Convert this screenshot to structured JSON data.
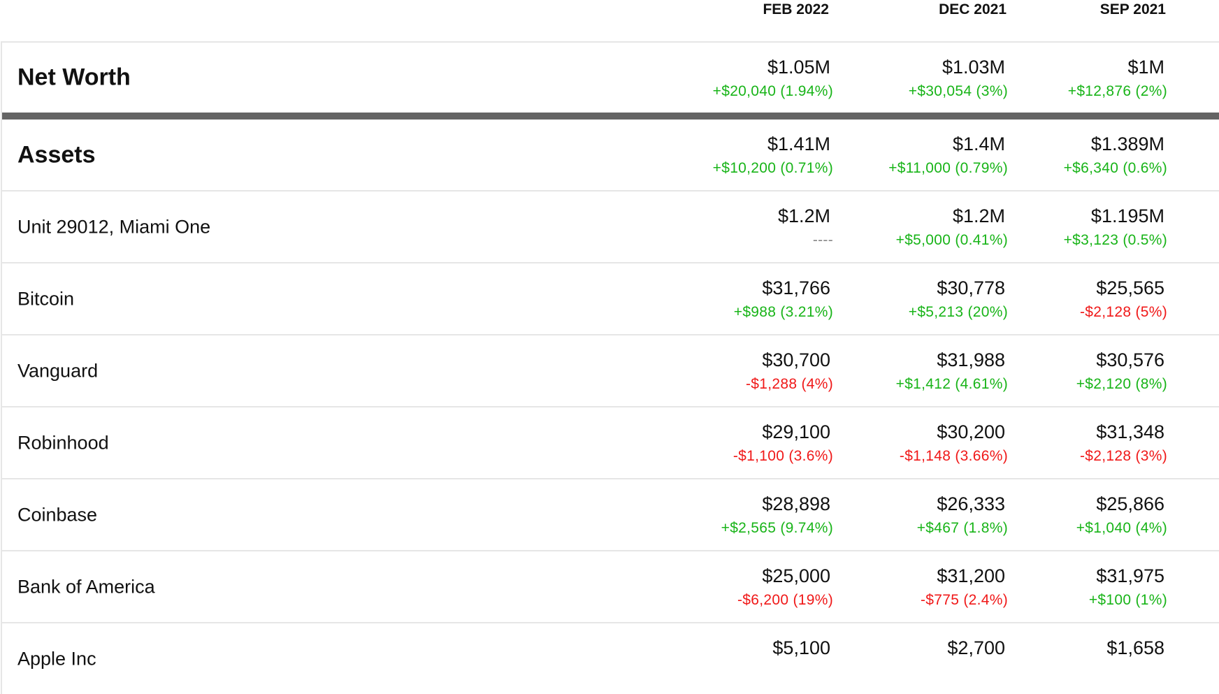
{
  "columns": [
    "FEB 2022",
    "DEC 2021",
    "SEP 2021"
  ],
  "colors": {
    "positive": "#18b418",
    "negative": "#f01818",
    "neutral": "#888888",
    "divider": "#646464"
  },
  "net_worth": {
    "label": "Net Worth",
    "cells": [
      {
        "value": "$1.05M",
        "change": "+$20,040 (1.94%)",
        "trend": "pos"
      },
      {
        "value": "$1.03M",
        "change": "+$30,054 (3%)",
        "trend": "pos"
      },
      {
        "value": "$1M",
        "change": "+$12,876 (2%)",
        "trend": "pos"
      }
    ]
  },
  "rows": [
    {
      "label": "Assets",
      "bold": true,
      "cells": [
        {
          "value": "$1.41M",
          "change": "+$10,200 (0.71%)",
          "trend": "pos"
        },
        {
          "value": "$1.4M",
          "change": "+$11,000 (0.79%)",
          "trend": "pos"
        },
        {
          "value": "$1.389M",
          "change": "+$6,340 (0.6%)",
          "trend": "pos"
        }
      ]
    },
    {
      "label": "Unit 29012, Miami One",
      "cells": [
        {
          "value": "$1.2M",
          "change": "----",
          "trend": "none"
        },
        {
          "value": "$1.2M",
          "change": "+$5,000 (0.41%)",
          "trend": "pos"
        },
        {
          "value": "$1.195M",
          "change": "+$3,123 (0.5%)",
          "trend": "pos"
        }
      ]
    },
    {
      "label": "Bitcoin",
      "cells": [
        {
          "value": "$31,766",
          "change": "+$988 (3.21%)",
          "trend": "pos"
        },
        {
          "value": "$30,778",
          "change": "+$5,213 (20%)",
          "trend": "pos"
        },
        {
          "value": "$25,565",
          "change": "-$2,128 (5%)",
          "trend": "neg"
        }
      ]
    },
    {
      "label": "Vanguard",
      "cells": [
        {
          "value": "$30,700",
          "change": "-$1,288 (4%)",
          "trend": "neg"
        },
        {
          "value": "$31,988",
          "change": "+$1,412 (4.61%)",
          "trend": "pos"
        },
        {
          "value": "$30,576",
          "change": "+$2,120 (8%)",
          "trend": "pos"
        }
      ]
    },
    {
      "label": "Robinhood",
      "cells": [
        {
          "value": "$29,100",
          "change": "-$1,100 (3.6%)",
          "trend": "neg"
        },
        {
          "value": "$30,200",
          "change": "-$1,148 (3.66%)",
          "trend": "neg"
        },
        {
          "value": "$31,348",
          "change": "-$2,128 (3%)",
          "trend": "neg"
        }
      ]
    },
    {
      "label": "Coinbase",
      "cells": [
        {
          "value": "$28,898",
          "change": "+$2,565 (9.74%)",
          "trend": "pos"
        },
        {
          "value": "$26,333",
          "change": "+$467 (1.8%)",
          "trend": "pos"
        },
        {
          "value": "$25,866",
          "change": "+$1,040 (4%)",
          "trend": "pos"
        }
      ]
    },
    {
      "label": "Bank of America",
      "cells": [
        {
          "value": "$25,000",
          "change": "-$6,200 (19%)",
          "trend": "neg"
        },
        {
          "value": "$31,200",
          "change": "-$775 (2.4%)",
          "trend": "neg"
        },
        {
          "value": "$31,975",
          "change": "+$100 (1%)",
          "trend": "pos"
        }
      ]
    },
    {
      "label": "Apple Inc",
      "cells": [
        {
          "value": "$5,100",
          "change": "",
          "trend": "none"
        },
        {
          "value": "$2,700",
          "change": "",
          "trend": "none"
        },
        {
          "value": "$1,658",
          "change": "",
          "trend": "none"
        }
      ]
    }
  ]
}
